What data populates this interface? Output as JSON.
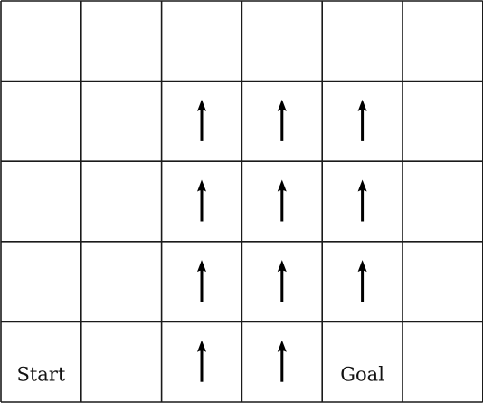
{
  "grid": {
    "rows": 5,
    "cols": 6,
    "line_color": "#1a1a1a",
    "arrow_color": "#000000"
  },
  "labels": {
    "start": "Start",
    "goal": "Goal"
  },
  "arrows": [
    {
      "row": 1,
      "col": 2,
      "direction": "up"
    },
    {
      "row": 1,
      "col": 3,
      "direction": "up"
    },
    {
      "row": 1,
      "col": 4,
      "direction": "up"
    },
    {
      "row": 2,
      "col": 2,
      "direction": "up"
    },
    {
      "row": 2,
      "col": 3,
      "direction": "up"
    },
    {
      "row": 2,
      "col": 4,
      "direction": "up"
    },
    {
      "row": 3,
      "col": 2,
      "direction": "up"
    },
    {
      "row": 3,
      "col": 3,
      "direction": "up"
    },
    {
      "row": 3,
      "col": 4,
      "direction": "up"
    },
    {
      "row": 4,
      "col": 2,
      "direction": "up"
    },
    {
      "row": 4,
      "col": 3,
      "direction": "up"
    }
  ],
  "label_cells": [
    {
      "key": "start",
      "row": 4,
      "col": 0
    },
    {
      "key": "goal",
      "row": 4,
      "col": 4
    }
  ]
}
